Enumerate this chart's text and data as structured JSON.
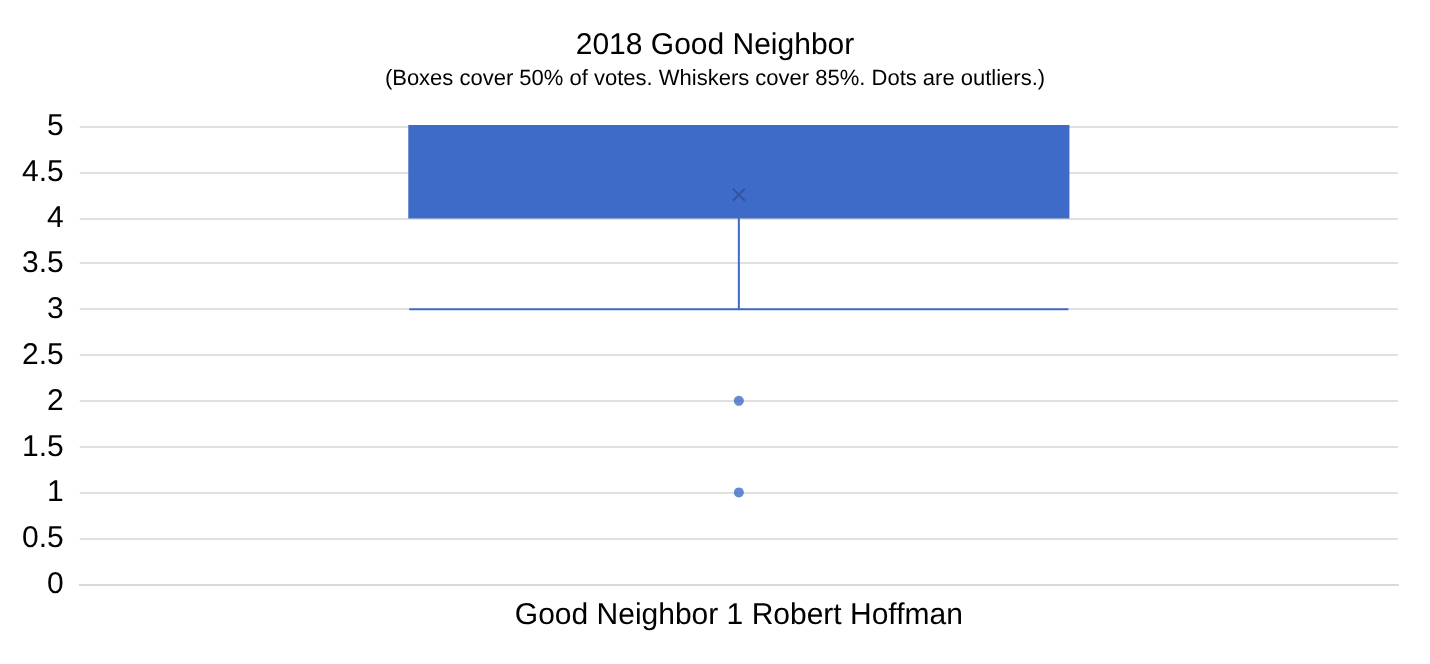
{
  "chart_data": {
    "type": "box",
    "title": "2018 Good Neighbor",
    "subtitle": "(Boxes cover 50% of votes. Whiskers cover 85%. Dots are outliers.)",
    "categories": [
      "Good Neighbor 1 Robert Hoffman"
    ],
    "series": [
      {
        "color": "#3f6bc8",
        "boxes": [
          {
            "low": 3,
            "q1": 4,
            "median": 5,
            "q3": 5,
            "high": 5,
            "mean": 4.25,
            "outliers": [
              1,
              2
            ]
          }
        ]
      }
    ],
    "ylim": [
      0,
      5
    ],
    "yticks": [
      0,
      0.5,
      1,
      1.5,
      2,
      2.5,
      3,
      3.5,
      4,
      4.5,
      5
    ],
    "grid": "y"
  }
}
